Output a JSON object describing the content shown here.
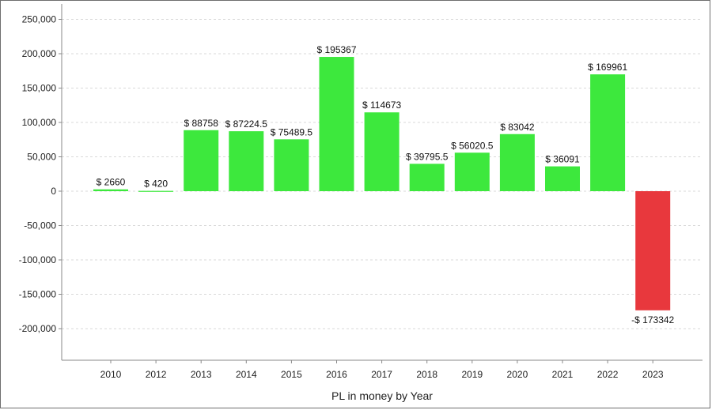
{
  "chart_data": {
    "type": "bar",
    "title": "",
    "xlabel": "PL in money by Year",
    "ylabel": "",
    "ylim": [
      -250000,
      250000
    ],
    "y_ticks": [
      250000,
      200000,
      150000,
      100000,
      50000,
      0,
      -50000,
      -100000,
      -150000,
      -200000
    ],
    "y_tick_labels": [
      "250,000",
      "200,000",
      "150,000",
      "100,000",
      "50,000",
      "0",
      "-50,000",
      "-100,000",
      "-150,000",
      "-200,000"
    ],
    "grid": true,
    "categories": [
      "2010",
      "2012",
      "2013",
      "2014",
      "2015",
      "2016",
      "2017",
      "2018",
      "2019",
      "2020",
      "2021",
      "2022",
      "2023"
    ],
    "values": [
      2660,
      420,
      88758,
      87224.5,
      75489.5,
      195367,
      114673,
      39795.5,
      56020.5,
      83042,
      36091,
      169961,
      -173342
    ],
    "data_labels": [
      "$ 2660",
      "$ 420",
      "$ 88758",
      "$ 87224.5",
      "$ 75489.5",
      "$ 195367",
      "$ 114673",
      "$ 39795.5",
      "$ 56020.5",
      "$ 83042",
      "$ 36091",
      "$ 169961",
      "-$ 173342"
    ],
    "colors": {
      "positive": "#3de83d",
      "negative": "#e8383d",
      "grid": "#d9d9d9",
      "axis": "#888888"
    }
  }
}
